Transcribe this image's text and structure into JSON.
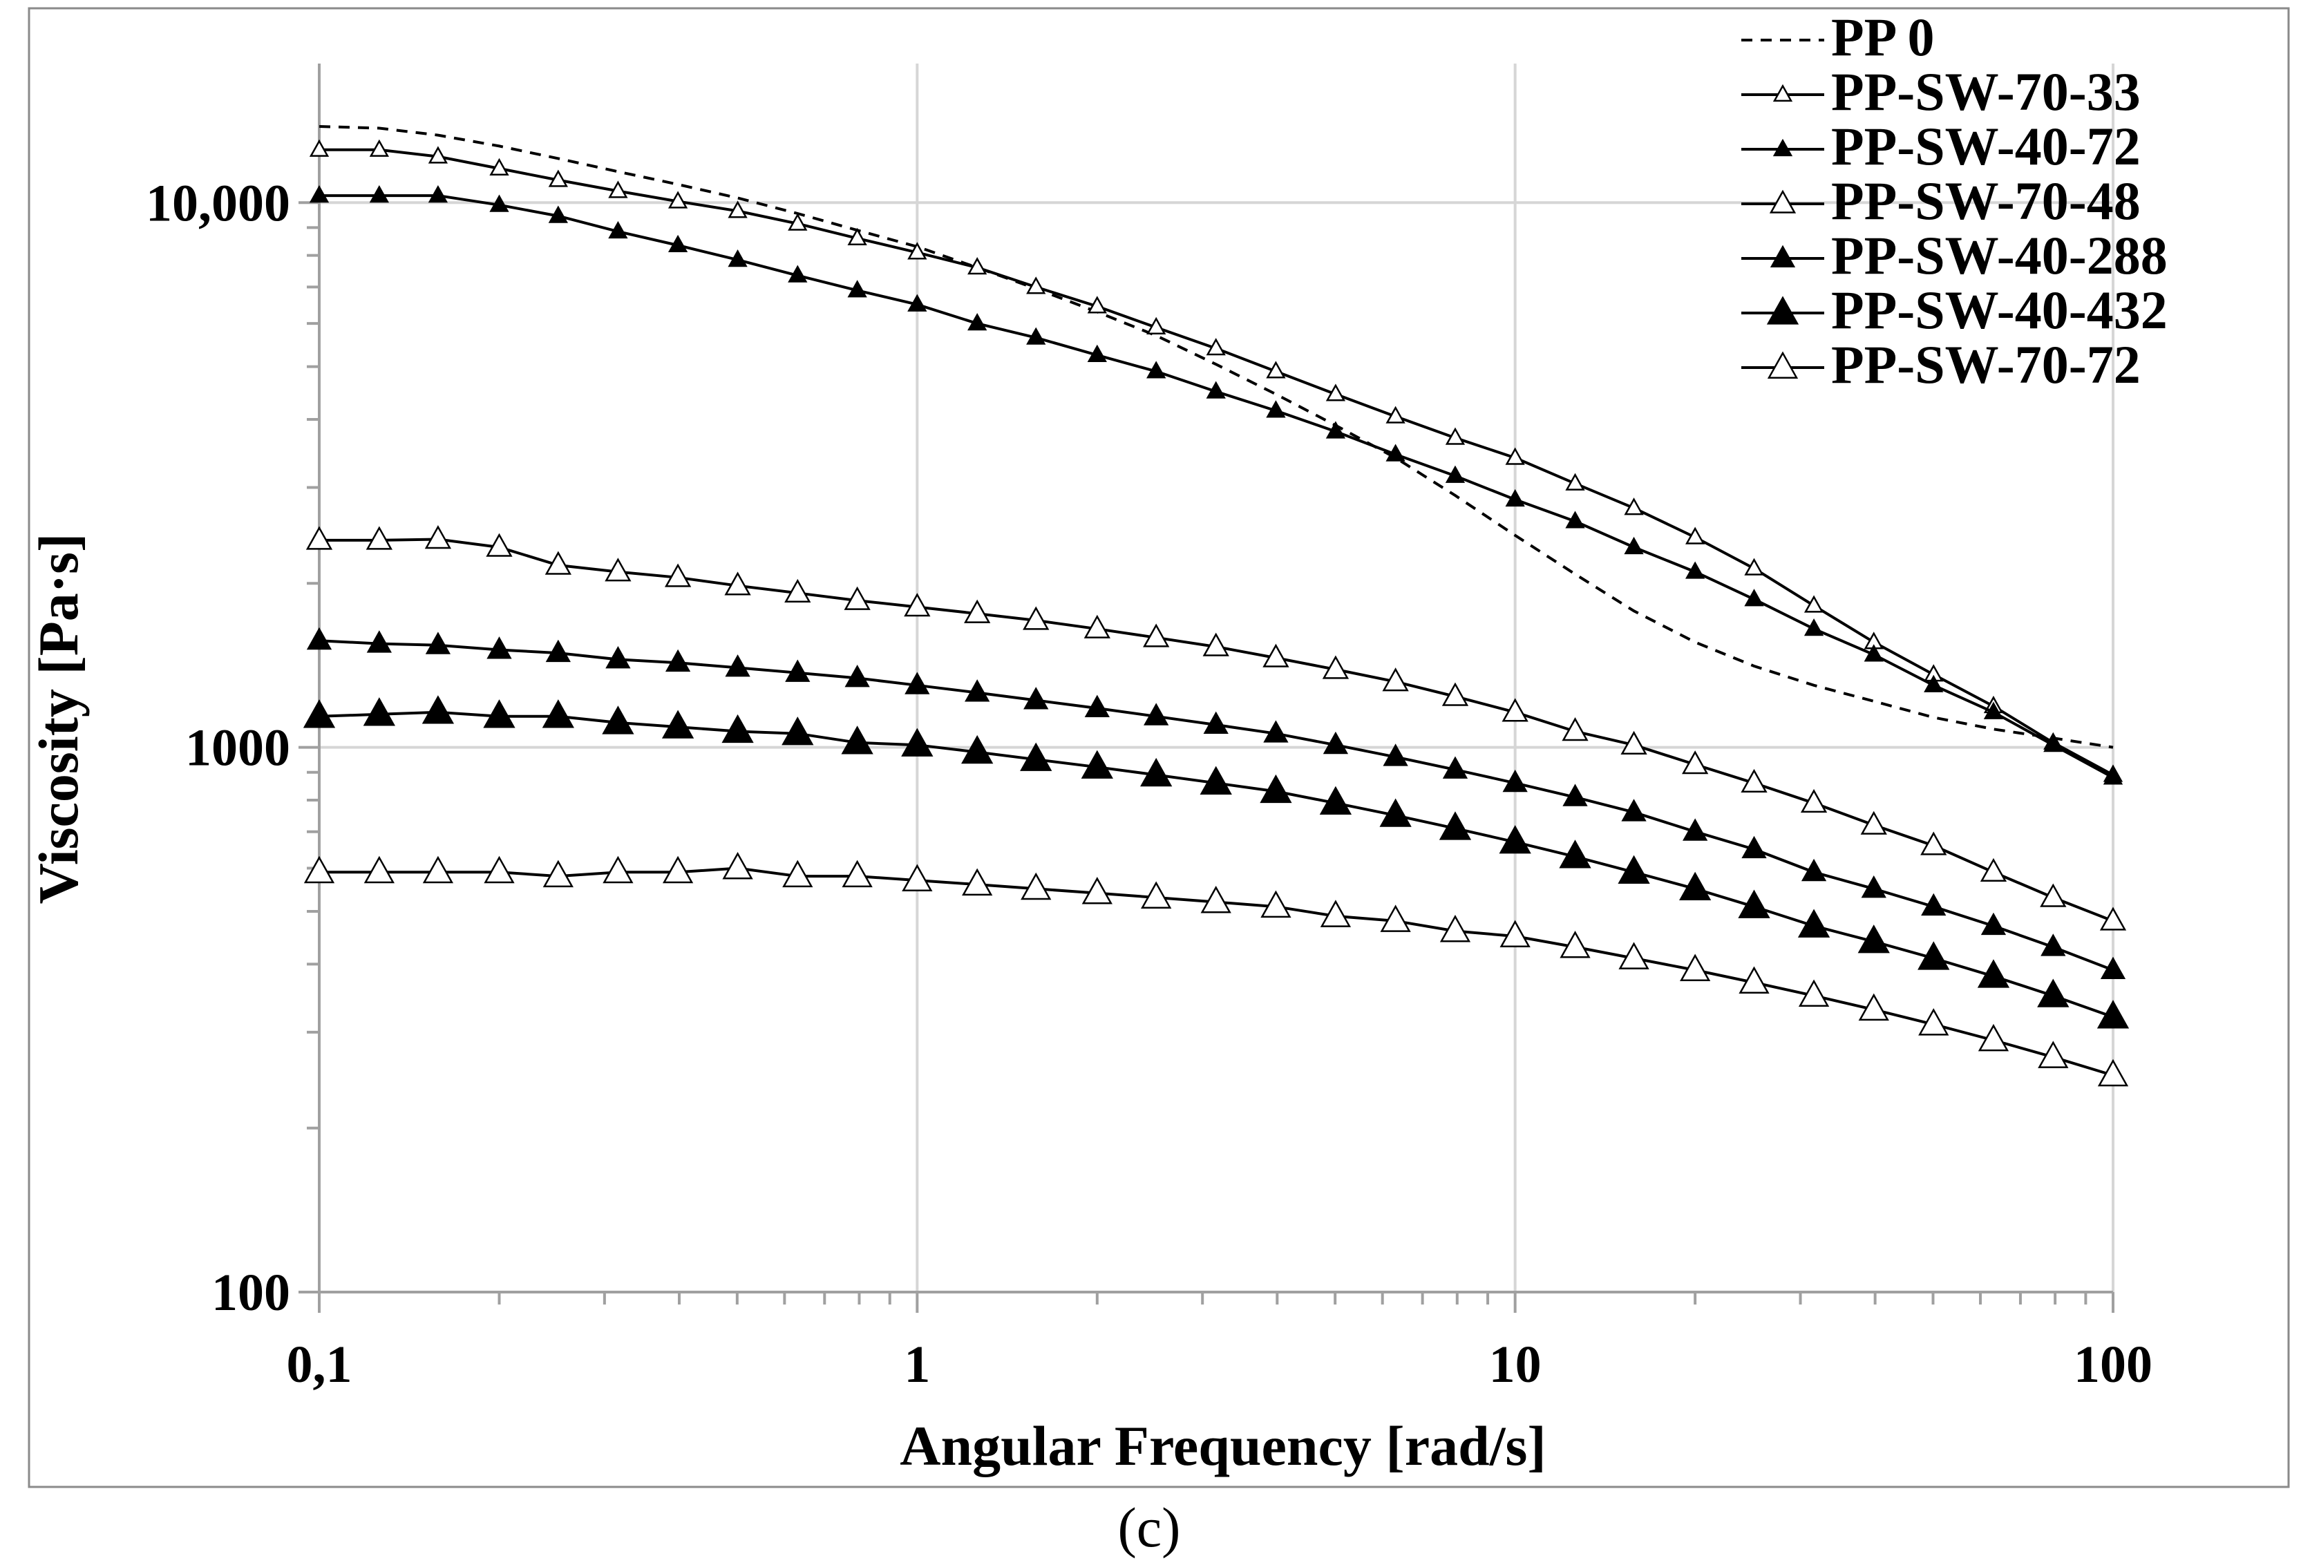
{
  "chart_data": {
    "type": "line",
    "title": "",
    "xlabel": "Angular Frequency [rad/s]",
    "ylabel": "Viscosity [Pa·s]",
    "xscale": "log",
    "yscale": "log",
    "xlim": [
      0.1,
      100
    ],
    "ylim": [
      100,
      18000
    ],
    "grid": true,
    "legend_position": "top-right",
    "x_ticks": [
      {
        "value": 0.1,
        "label": "0,1"
      },
      {
        "value": 1,
        "label": "1"
      },
      {
        "value": 10,
        "label": "10"
      },
      {
        "value": 100,
        "label": "100"
      }
    ],
    "y_ticks": [
      {
        "value": 100,
        "label": "100"
      },
      {
        "value": 1000,
        "label": "1000"
      },
      {
        "value": 10000,
        "label": "10,000"
      }
    ],
    "x": [
      0.1,
      0.126,
      0.158,
      0.2,
      0.251,
      0.316,
      0.398,
      0.501,
      0.631,
      0.794,
      1,
      1.26,
      1.58,
      2,
      2.51,
      3.16,
      3.98,
      5.01,
      6.31,
      7.94,
      10,
      12.6,
      15.8,
      20,
      25.1,
      31.6,
      39.8,
      50.1,
      63.1,
      79.4,
      100
    ],
    "series": [
      {
        "name": "PP 0",
        "style": "dashed",
        "marker": "none",
        "values": [
          13800,
          13700,
          13300,
          12700,
          12050,
          11400,
          10800,
          10200,
          9550,
          8900,
          8300,
          7600,
          6950,
          6300,
          5700,
          5050,
          4450,
          3900,
          3400,
          2900,
          2450,
          2080,
          1780,
          1560,
          1410,
          1300,
          1215,
          1135,
          1080,
          1040,
          1000
        ]
      },
      {
        "name": "PP-SW-70-33",
        "style": "solid",
        "marker": "triangle-open-small",
        "values": [
          12500,
          12500,
          12150,
          11550,
          11000,
          10500,
          10050,
          9650,
          9150,
          8600,
          8100,
          7600,
          7000,
          6450,
          5900,
          5400,
          4900,
          4450,
          4050,
          3700,
          3400,
          3050,
          2750,
          2430,
          2130,
          1820,
          1560,
          1360,
          1190,
          1020,
          890
        ]
      },
      {
        "name": "PP-SW-40-72",
        "style": "solid",
        "marker": "triangle-filled-small",
        "values": [
          10300,
          10300,
          10300,
          9900,
          9450,
          8850,
          8350,
          7850,
          7350,
          6900,
          6500,
          6000,
          5650,
          5250,
          4900,
          4500,
          4150,
          3800,
          3450,
          3150,
          2850,
          2600,
          2330,
          2100,
          1870,
          1650,
          1480,
          1300,
          1160,
          1010,
          880
        ]
      },
      {
        "name": "PP-SW-70-48",
        "style": "solid",
        "marker": "triangle-open",
        "values": [
          2400,
          2400,
          2410,
          2330,
          2160,
          2100,
          2050,
          1980,
          1920,
          1860,
          1810,
          1760,
          1710,
          1650,
          1590,
          1530,
          1460,
          1390,
          1320,
          1240,
          1160,
          1070,
          1010,
          930,
          860,
          790,
          720,
          660,
          590,
          530,
          480
        ]
      },
      {
        "name": "PP-SW-40-288",
        "style": "solid",
        "marker": "triangle-filled",
        "values": [
          1570,
          1550,
          1540,
          1510,
          1490,
          1450,
          1430,
          1400,
          1370,
          1340,
          1300,
          1260,
          1220,
          1180,
          1140,
          1100,
          1060,
          1010,
          960,
          910,
          860,
          810,
          760,
          700,
          650,
          590,
          550,
          510,
          470,
          430,
          390
        ]
      },
      {
        "name": "PP-SW-40-432",
        "style": "solid",
        "marker": "triangle-filled-large",
        "values": [
          1140,
          1150,
          1160,
          1140,
          1140,
          1110,
          1090,
          1070,
          1060,
          1020,
          1010,
          980,
          950,
          920,
          890,
          860,
          830,
          790,
          750,
          710,
          670,
          630,
          590,
          550,
          510,
          470,
          440,
          410,
          380,
          350,
          320
        ]
      },
      {
        "name": "PP-SW-70-72",
        "style": "solid",
        "marker": "triangle-open-large",
        "values": [
          590,
          590,
          590,
          590,
          580,
          590,
          590,
          600,
          580,
          580,
          570,
          560,
          550,
          540,
          530,
          520,
          510,
          490,
          480,
          460,
          450,
          430,
          410,
          390,
          370,
          350,
          330,
          310,
          290,
          270,
          250
        ]
      }
    ]
  },
  "caption": "(c)"
}
